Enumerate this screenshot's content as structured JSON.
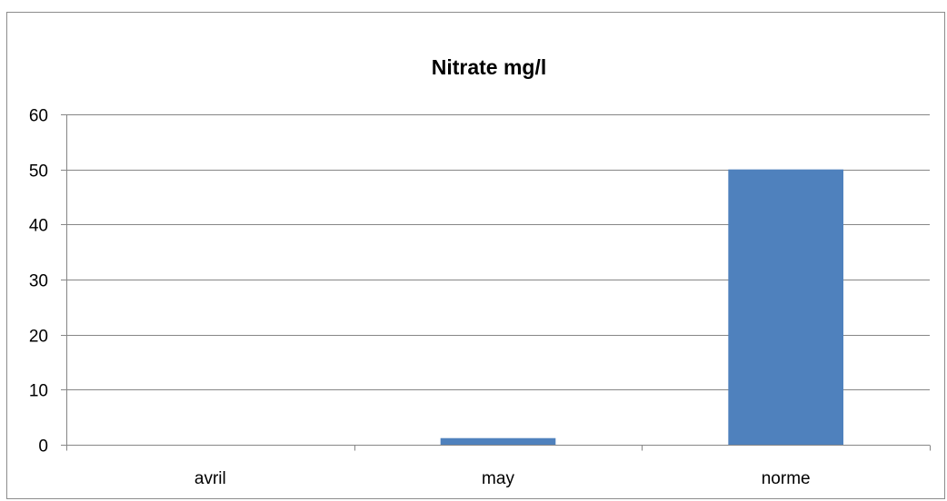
{
  "chart_data": {
    "type": "bar",
    "title": "Nitrate mg/l",
    "categories": [
      "avril",
      "may",
      "norme"
    ],
    "series": [
      {
        "values": [
          0,
          1.2,
          50
        ]
      }
    ],
    "ylim": [
      0,
      60
    ],
    "yticks": [
      0,
      10,
      20,
      30,
      40,
      50,
      60
    ],
    "grid": true,
    "legend": "none",
    "bar_color": "#4F81BD"
  }
}
